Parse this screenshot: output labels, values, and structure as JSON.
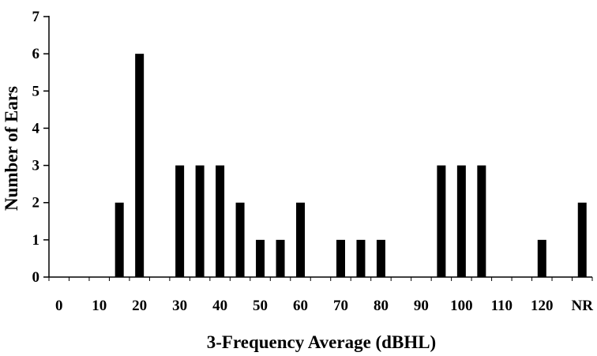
{
  "chart_data": {
    "type": "bar",
    "xlabel": "3-Frequency Average (dBHL)",
    "ylabel": "Number of Ears",
    "ylim": [
      0,
      7
    ],
    "y_ticks": [
      "0",
      "1",
      "2",
      "3",
      "4",
      "5",
      "6",
      "7"
    ],
    "x_tick_labels": [
      "0",
      "10",
      "20",
      "30",
      "40",
      "50",
      "60",
      "70",
      "80",
      "90",
      "100",
      "110",
      "120",
      "NR"
    ],
    "categories": [
      "0",
      "5",
      "10",
      "15",
      "20",
      "25",
      "30",
      "35",
      "40",
      "45",
      "50",
      "55",
      "60",
      "65",
      "70",
      "75",
      "80",
      "85",
      "90",
      "95",
      "100",
      "105",
      "110",
      "115",
      "120",
      "125",
      "NR"
    ],
    "values": [
      0,
      0,
      0,
      2,
      6,
      0,
      3,
      3,
      3,
      2,
      1,
      1,
      2,
      0,
      1,
      1,
      1,
      0,
      0,
      3,
      3,
      3,
      0,
      0,
      1,
      0,
      2
    ],
    "grid": false,
    "legend": "none",
    "bar_color": "#000000"
  }
}
